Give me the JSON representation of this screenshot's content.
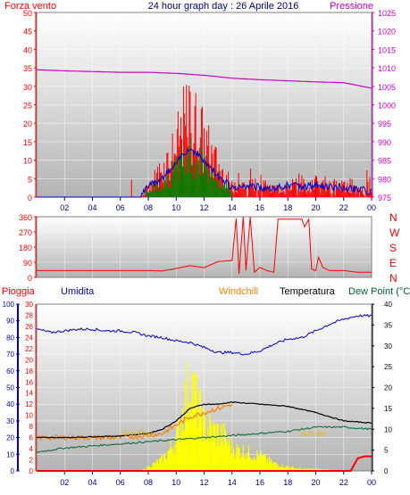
{
  "header": {
    "left_title": "Forza vento",
    "title": "24 hour graph day : 26 Aprile 2016",
    "right_title": "Pressione"
  },
  "middle_header": {
    "pioggia": "Pioggia",
    "umidita": "Umidita",
    "windchill": "Windchill",
    "temperatura": "Temperatura",
    "dewpoint": "Dew Point (°C"
  },
  "compass_labels": [
    "N",
    "W",
    "S",
    "E",
    "N"
  ],
  "annotations": {
    "sunrise": "Sun Rise",
    "sunset": "Sun Set"
  },
  "colors": {
    "wind_gust": "#ff0000",
    "wind_avg": "#0000cc",
    "wind_green": "#008000",
    "pressure": "#cc00cc",
    "direction": "#ff0000",
    "humidity": "#0000cc",
    "windchill": "#ff8000",
    "temperature": "#000000",
    "dewpoint": "#006633",
    "solar": "#ffff00",
    "rain": "#ff0000",
    "left_axis_red": "#ff0000",
    "left_axis_blue": "#0000cc"
  },
  "chart_data": [
    {
      "type": "line",
      "title": "24 hour graph day : 26 Aprile 2016",
      "x_ticks": [
        "02",
        "04",
        "06",
        "08",
        "10",
        "12",
        "14",
        "16",
        "18",
        "20",
        "22",
        "00"
      ],
      "y_left": {
        "label": "Forza vento",
        "ticks": [
          0,
          5,
          10,
          15,
          20,
          25,
          30,
          35,
          40,
          45,
          50
        ],
        "ylim": [
          0,
          50
        ]
      },
      "y_right": {
        "label": "Pressione",
        "ticks": [
          975,
          980,
          985,
          990,
          995,
          1000,
          1005,
          1010,
          1015,
          1020,
          1025
        ],
        "ylim": [
          975,
          1025
        ]
      },
      "series": [
        {
          "name": "Pressione",
          "x": [
            0,
            2,
            4,
            6,
            8,
            10,
            12,
            14,
            16,
            18,
            20,
            22,
            24
          ],
          "values": [
            1009.5,
            1009.2,
            1009.0,
            1008.8,
            1008.8,
            1008.5,
            1008.0,
            1007.2,
            1006.8,
            1006.5,
            1006.2,
            1006.0,
            1004.5
          ]
        },
        {
          "x": [
            0,
            2,
            4,
            6,
            7.5,
            8,
            9,
            10,
            10.5,
            11,
            11.5,
            12,
            12.5,
            13,
            13.5,
            14,
            15,
            16,
            17,
            18,
            19,
            20,
            21,
            22,
            23,
            24
          ],
          "values": [
            0,
            0,
            0,
            0,
            0,
            3,
            8,
            14,
            20,
            22,
            20,
            16,
            12,
            9,
            6,
            3,
            4,
            3,
            2,
            4,
            3,
            4,
            3,
            3,
            2,
            1
          ]
        }
      ]
    },
    {
      "type": "line",
      "y_left": {
        "ticks": [
          0,
          90,
          180,
          270,
          360
        ],
        "ylim": [
          0,
          360
        ]
      },
      "series": [
        {
          "x": [
            0,
            2,
            4,
            6,
            8,
            9,
            10,
            11,
            12,
            13,
            14,
            14.3,
            14.5,
            14.8,
            15,
            15.3,
            15.6,
            16,
            16.5,
            17,
            17.3,
            17.5,
            18,
            18.5,
            19,
            19.2,
            19.5,
            19.7,
            20,
            20.2,
            20.5,
            21,
            22,
            23,
            24
          ],
          "values": [
            40,
            40,
            40,
            40,
            40,
            45,
            50,
            55,
            60,
            80,
            100,
            350,
            20,
            360,
            40,
            360,
            30,
            60,
            40,
            30,
            345,
            345,
            345,
            345,
            345,
            300,
            345,
            50,
            40,
            120,
            60,
            40,
            40,
            30,
            30
          ]
        }
      ]
    },
    {
      "type": "line",
      "y_left_humidity": {
        "label": "Umidita",
        "ticks": [
          0,
          10,
          20,
          30,
          40,
          50,
          60,
          70,
          80,
          90,
          100
        ],
        "ylim": [
          0,
          100
        ]
      },
      "y_left_rain": {
        "label": "Pioggia",
        "ticks": [
          0,
          2,
          4,
          6,
          8,
          10,
          12,
          14,
          16,
          18,
          20,
          22,
          24,
          26,
          28,
          30
        ],
        "ylim": [
          0,
          30
        ]
      },
      "y_right": {
        "ticks": [
          0,
          5,
          10,
          15,
          20,
          25,
          30,
          35,
          40
        ],
        "ylim": [
          0,
          40
        ]
      },
      "x_ticks": [
        "02",
        "04",
        "06",
        "08",
        "10",
        "12",
        "14",
        "16",
        "18",
        "20",
        "22",
        "00"
      ],
      "series": [
        {
          "name": "Umidita",
          "x": [
            0,
            1,
            2,
            3,
            4,
            5,
            6,
            7,
            8,
            9,
            10,
            11,
            12,
            13,
            14,
            15,
            16,
            17,
            18,
            19,
            20,
            21,
            22,
            23,
            24
          ],
          "values": [
            85,
            83,
            84,
            85,
            85,
            84,
            84,
            83,
            81,
            80,
            78,
            77,
            74,
            71,
            71,
            70,
            72,
            76,
            79,
            80,
            84,
            88,
            91,
            93,
            93
          ]
        },
        {
          "name": "Temperatura",
          "x": [
            0,
            2,
            4,
            6,
            8,
            9,
            10,
            11,
            12,
            13,
            14,
            16,
            18,
            20,
            22,
            24
          ],
          "values": [
            8,
            8,
            8.2,
            8.4,
            9,
            10,
            12,
            15,
            16,
            16,
            16.5,
            16,
            15.5,
            14,
            12,
            11.5
          ]
        },
        {
          "name": "Windchill",
          "x": [
            0,
            2,
            4,
            6,
            8,
            9,
            10,
            11,
            12,
            13,
            14
          ],
          "values": [
            8,
            8,
            8,
            8,
            8.5,
            9,
            11,
            13,
            14,
            15,
            16
          ]
        },
        {
          "name": "Dew Point (°C",
          "x": [
            0,
            2,
            4,
            6,
            8,
            10,
            12,
            14,
            16,
            18,
            20,
            22,
            24
          ],
          "values": [
            4.5,
            5.5,
            6,
            6.5,
            7,
            7.5,
            8,
            8.5,
            9,
            9.5,
            10.5,
            10.5,
            10
          ]
        },
        {
          "x": [
            0,
            7.5,
            8,
            9,
            10,
            10.5,
            11,
            11.5,
            12,
            12.5,
            13,
            13.5,
            14,
            15,
            16,
            17,
            18,
            19,
            20,
            21,
            22,
            24
          ],
          "values": [
            0,
            0,
            1,
            3,
            8,
            16,
            24,
            18,
            12,
            11,
            10,
            9,
            6,
            5,
            4,
            2,
            1,
            0.5,
            0.5,
            0.3,
            0,
            0
          ]
        },
        {
          "name": "Pioggia",
          "x": [
            0,
            22.5,
            23,
            23.5,
            24
          ],
          "values": [
            0,
            0,
            3,
            3.5,
            3.5
          ]
        }
      ]
    }
  ]
}
